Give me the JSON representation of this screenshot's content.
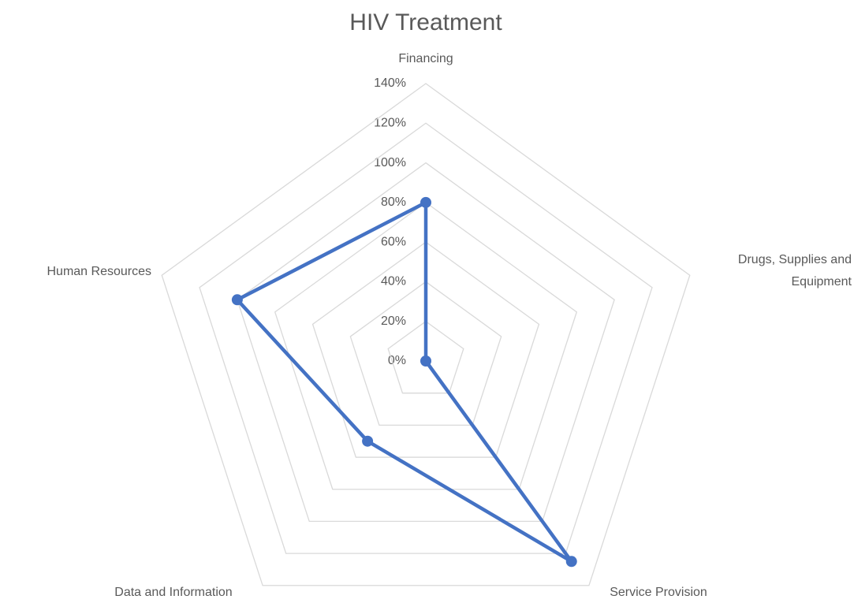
{
  "chart_data": {
    "type": "radar",
    "title": "HIV Treatment",
    "categories": [
      "Financing",
      "Drugs, Supplies and Equipment",
      "Service Provision",
      "Data and Information",
      "Human Resources"
    ],
    "series": [
      {
        "name": "HIV Treatment",
        "color": "#4472c4",
        "values": [
          80,
          0,
          125,
          50,
          100
        ]
      }
    ],
    "ylim": [
      0,
      140
    ],
    "yticks": [
      {
        "value": 0,
        "label": "0%"
      },
      {
        "value": 20,
        "label": "20%"
      },
      {
        "value": 40,
        "label": "40%"
      },
      {
        "value": 60,
        "label": "60%"
      },
      {
        "value": 80,
        "label": "80%"
      },
      {
        "value": 100,
        "label": "100%"
      },
      {
        "value": 120,
        "label": "120%"
      },
      {
        "value": 140,
        "label": "140%"
      }
    ],
    "grid": true
  }
}
